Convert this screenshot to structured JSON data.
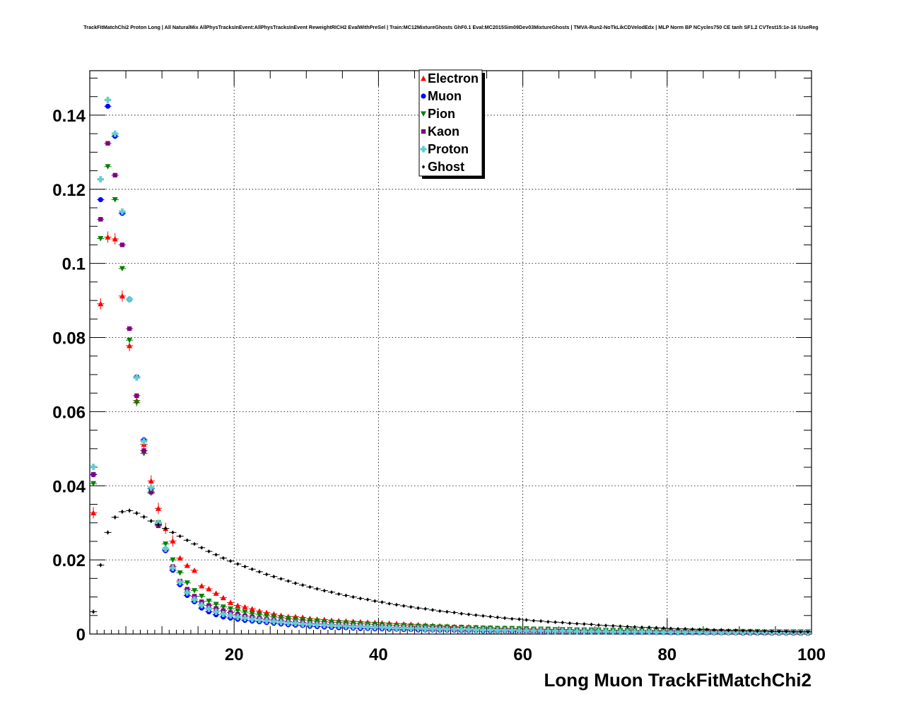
{
  "chart_data": {
    "type": "scatter",
    "title": "TrackFitMatchChi2 Proton Long | All NaturalMix AllPhysTracksInEvent:AllPhysTracksInEvent ReweightRICH2 EvalWithPreSel | Train:MC12MixtureGhosts GhF0.1 Eval:MC2015Sim09Dev03MixtureGhosts | TMVA-Run2-NoTkLikCDVelodEdx | MLP Norm BP NCycles750 CE tanh SF1.2 CVTest15:1e-16 !UseReg",
    "xlabel": "Long Muon TrackFitMatchChi2",
    "ylabel": "",
    "xlim": [
      0,
      100
    ],
    "ylim": [
      0,
      0.152
    ],
    "x_ticks": [
      20,
      40,
      60,
      80,
      100
    ],
    "x_tick_labels": [
      "20",
      "40",
      "60",
      "80",
      "100"
    ],
    "y_ticks": [
      0,
      0.02,
      0.04,
      0.06,
      0.08,
      0.1,
      0.12,
      0.14
    ],
    "y_tick_labels": [
      "0",
      "0.02",
      "0.04",
      "0.06",
      "0.08",
      "0.1",
      "0.12",
      "0.14"
    ],
    "grid": true,
    "legend_position": "top-center",
    "x": [
      0.5,
      1.5,
      2.5,
      3.5,
      4.5,
      5.5,
      6.5,
      7.5,
      8.5,
      9.5,
      10.5,
      11.5,
      12.5,
      13.5,
      14.5,
      15.5,
      16.5,
      17.5,
      18.5,
      19.5,
      20.5,
      21.5,
      22.5,
      23.5,
      24.5,
      25.5,
      26.5,
      27.5,
      28.5,
      29.5,
      30.5,
      31.5,
      32.5,
      33.5,
      34.5,
      35.5,
      36.5,
      37.5,
      38.5,
      39.5,
      40.5,
      41.5,
      42.5,
      43.5,
      44.5,
      45.5,
      46.5,
      47.5,
      48.5,
      49.5,
      50.5,
      51.5,
      52.5,
      53.5,
      54.5,
      55.5,
      56.5,
      57.5,
      58.5,
      59.5,
      60.5,
      61.5,
      62.5,
      63.5,
      64.5,
      65.5,
      66.5,
      67.5,
      68.5,
      69.5,
      70.5,
      71.5,
      72.5,
      73.5,
      74.5,
      75.5,
      76.5,
      77.5,
      78.5,
      79.5,
      80.5,
      81.5,
      82.5,
      83.5,
      84.5,
      85.5,
      86.5,
      87.5,
      88.5,
      89.5,
      90.5,
      91.5,
      92.5,
      93.5,
      94.5,
      95.5,
      96.5,
      97.5,
      98.5,
      99.5
    ],
    "series": [
      {
        "name": "Electron",
        "color": "#ff0000",
        "marker": "triangle-up",
        "values": [
          0.0327,
          0.0891,
          0.1071,
          0.1066,
          0.0912,
          0.0778,
          0.063,
          0.0512,
          0.0413,
          0.0339,
          0.0285,
          0.0251,
          0.0205,
          0.0185,
          0.0172,
          0.013,
          0.0122,
          0.011,
          0.0098,
          0.0085,
          0.0077,
          0.0073,
          0.0068,
          0.0062,
          0.0058,
          0.0054,
          0.005,
          0.0047,
          0.0047,
          0.0045,
          0.0042,
          0.004,
          0.0039,
          0.0037,
          0.0036,
          0.0035,
          0.0034,
          0.0033,
          0.0032,
          0.0031,
          0.003,
          0.0029,
          0.0028,
          0.0027,
          0.0026,
          0.0025,
          0.0024,
          0.0023,
          0.0022,
          0.0021,
          0.002,
          0.0019,
          0.0019,
          0.0018,
          0.0017,
          0.0017,
          0.0016,
          0.0016,
          0.0015,
          0.0015,
          0.0014,
          0.0014,
          0.0013,
          0.0013,
          0.0012,
          0.0012,
          0.0012,
          0.0011,
          0.0011,
          0.0011,
          0.001,
          0.001,
          0.001,
          0.0009,
          0.0009,
          0.0009,
          0.0009,
          0.0008,
          0.0008,
          0.0008,
          0.0008,
          0.0007,
          0.0007,
          0.0007,
          0.0007,
          0.0007,
          0.0006,
          0.0006,
          0.0006,
          0.0006,
          0.0006,
          0.0006,
          0.0005,
          0.0005,
          0.0005,
          0.0005,
          0.0005,
          0.0005,
          0.0005,
          0.0005
        ]
      },
      {
        "name": "Muon",
        "color": "#0000ff",
        "marker": "circle",
        "values": [
          0.043,
          0.1172,
          0.1424,
          0.1343,
          0.1135,
          0.0903,
          0.0694,
          0.0524,
          0.0392,
          0.0297,
          0.0225,
          0.0172,
          0.0133,
          0.0104,
          0.0087,
          0.007,
          0.006,
          0.0052,
          0.0046,
          0.0043,
          0.004,
          0.0037,
          0.0035,
          0.0033,
          0.0031,
          0.0029,
          0.0027,
          0.0025,
          0.0024,
          0.0023,
          0.0021,
          0.002,
          0.0019,
          0.0018,
          0.0017,
          0.0017,
          0.0016,
          0.0015,
          0.0015,
          0.0014,
          0.0014,
          0.0013,
          0.0013,
          0.0012,
          0.0012,
          0.0011,
          0.0011,
          0.0011,
          0.001,
          0.001,
          0.001,
          0.0009,
          0.0009,
          0.0009,
          0.0008,
          0.0008,
          0.0008,
          0.0008,
          0.0007,
          0.0007,
          0.0007,
          0.0007,
          0.0006,
          0.0006,
          0.0006,
          0.0006,
          0.0006,
          0.0005,
          0.0005,
          0.0005,
          0.0005,
          0.0005,
          0.0005,
          0.0004,
          0.0004,
          0.0004,
          0.0004,
          0.0004,
          0.0004,
          0.0004,
          0.0003,
          0.0003,
          0.0003,
          0.0003,
          0.0003,
          0.0003,
          0.0003,
          0.0003,
          0.0003,
          0.0003,
          0.0002,
          0.0002,
          0.0002,
          0.0002,
          0.0002,
          0.0002,
          0.0002,
          0.0002,
          0.0002,
          0.0002
        ]
      },
      {
        "name": "Pion",
        "color": "#008000",
        "marker": "triangle-down",
        "values": [
          0.0406,
          0.1067,
          0.1261,
          0.1172,
          0.0986,
          0.0793,
          0.0624,
          0.0487,
          0.038,
          0.03,
          0.0243,
          0.02,
          0.0165,
          0.0138,
          0.0117,
          0.0102,
          0.0089,
          0.008,
          0.0073,
          0.0068,
          0.0063,
          0.0059,
          0.0055,
          0.0052,
          0.0049,
          0.0046,
          0.0044,
          0.0042,
          0.004,
          0.0038,
          0.0036,
          0.0035,
          0.0033,
          0.0032,
          0.0031,
          0.003,
          0.0029,
          0.0028,
          0.0027,
          0.0026,
          0.0025,
          0.0024,
          0.0023,
          0.0023,
          0.0022,
          0.0021,
          0.0021,
          0.002,
          0.0019,
          0.0019,
          0.0018,
          0.0018,
          0.0017,
          0.0017,
          0.0016,
          0.0016,
          0.0015,
          0.0015,
          0.0015,
          0.0014,
          0.0014,
          0.0013,
          0.0013,
          0.0013,
          0.0012,
          0.0012,
          0.0012,
          0.0011,
          0.0011,
          0.0011,
          0.0011,
          0.001,
          0.001,
          0.001,
          0.001,
          0.0009,
          0.0009,
          0.0009,
          0.0009,
          0.0009,
          0.0008,
          0.0008,
          0.0008,
          0.0008,
          0.0008,
          0.0008,
          0.0007,
          0.0007,
          0.0007,
          0.0007,
          0.0007,
          0.0007,
          0.0007,
          0.0006,
          0.0006,
          0.0006,
          0.0006,
          0.0006,
          0.0006,
          0.0006
        ]
      },
      {
        "name": "Kaon",
        "color": "#800080",
        "marker": "square",
        "values": [
          0.0431,
          0.1119,
          0.1324,
          0.1238,
          0.105,
          0.0824,
          0.0643,
          0.0495,
          0.0383,
          0.0292,
          0.0228,
          0.0182,
          0.0143,
          0.0121,
          0.0102,
          0.0087,
          0.0077,
          0.0069,
          0.0063,
          0.0058,
          0.0053,
          0.0049,
          0.0046,
          0.0043,
          0.004,
          0.0038,
          0.0036,
          0.0034,
          0.0032,
          0.0031,
          0.0029,
          0.0028,
          0.0027,
          0.0026,
          0.0025,
          0.0024,
          0.0023,
          0.0022,
          0.0021,
          0.002,
          0.002,
          0.0019,
          0.0018,
          0.0018,
          0.0017,
          0.0016,
          0.0016,
          0.0015,
          0.0015,
          0.0014,
          0.0014,
          0.0013,
          0.0013,
          0.0013,
          0.0012,
          0.0012,
          0.0011,
          0.0011,
          0.0011,
          0.001,
          0.001,
          0.001,
          0.0009,
          0.0009,
          0.0009,
          0.0009,
          0.0008,
          0.0008,
          0.0008,
          0.0008,
          0.0007,
          0.0007,
          0.0007,
          0.0007,
          0.0007,
          0.0006,
          0.0006,
          0.0006,
          0.0006,
          0.0006,
          0.0006,
          0.0005,
          0.0005,
          0.0005,
          0.0005,
          0.0005,
          0.0005,
          0.0005,
          0.0004,
          0.0004,
          0.0004,
          0.0004,
          0.0004,
          0.0004,
          0.0004,
          0.0004,
          0.0004,
          0.0004,
          0.0003,
          0.0003
        ]
      },
      {
        "name": "Proton",
        "color": "#66cccc",
        "marker": "cross",
        "values": [
          0.0451,
          0.1227,
          0.1441,
          0.135,
          0.114,
          0.0903,
          0.0692,
          0.052,
          0.0395,
          0.03,
          0.023,
          0.0178,
          0.014,
          0.0112,
          0.0093,
          0.0078,
          0.0068,
          0.006,
          0.0054,
          0.005,
          0.0046,
          0.0043,
          0.004,
          0.0038,
          0.0036,
          0.0034,
          0.0032,
          0.003,
          0.0029,
          0.0027,
          0.0026,
          0.0025,
          0.0024,
          0.0023,
          0.0022,
          0.0021,
          0.002,
          0.002,
          0.0019,
          0.0018,
          0.0018,
          0.0017,
          0.0016,
          0.0016,
          0.0015,
          0.0015,
          0.0014,
          0.0014,
          0.0013,
          0.0013,
          0.0013,
          0.0012,
          0.0012,
          0.0011,
          0.0011,
          0.0011,
          0.001,
          0.001,
          0.001,
          0.0009,
          0.0009,
          0.0009,
          0.0009,
          0.0008,
          0.0008,
          0.0008,
          0.0008,
          0.0007,
          0.0007,
          0.0007,
          0.0007,
          0.0007,
          0.0006,
          0.0006,
          0.0006,
          0.0006,
          0.0006,
          0.0006,
          0.0005,
          0.0005,
          0.0005,
          0.0005,
          0.0005,
          0.0005,
          0.0005,
          0.0004,
          0.0004,
          0.0004,
          0.0004,
          0.0004,
          0.0004,
          0.0004,
          0.0004,
          0.0004,
          0.0003,
          0.0003,
          0.0003,
          0.0003,
          0.0003,
          0.0003
        ]
      },
      {
        "name": "Ghost",
        "color": "#000000",
        "marker": "diamond",
        "values": [
          0.006,
          0.0186,
          0.0274,
          0.0315,
          0.033,
          0.0333,
          0.0326,
          0.0316,
          0.0305,
          0.0295,
          0.0285,
          0.0274,
          0.0264,
          0.0253,
          0.0243,
          0.0233,
          0.0223,
          0.0214,
          0.0205,
          0.0197,
          0.0189,
          0.0182,
          0.0175,
          0.0168,
          0.0161,
          0.0155,
          0.0149,
          0.0143,
          0.0137,
          0.0132,
          0.0127,
          0.0122,
          0.0117,
          0.0113,
          0.0108,
          0.0104,
          0.01,
          0.0096,
          0.0093,
          0.0089,
          0.0086,
          0.0082,
          0.0079,
          0.0076,
          0.0073,
          0.007,
          0.0068,
          0.0065,
          0.0062,
          0.006,
          0.0058,
          0.0055,
          0.0053,
          0.0051,
          0.0049,
          0.0047,
          0.0045,
          0.0043,
          0.0041,
          0.004,
          0.0038,
          0.0036,
          0.0035,
          0.0033,
          0.0032,
          0.0031,
          0.0029,
          0.0028,
          0.0027,
          0.0026,
          0.0024,
          0.0023,
          0.0022,
          0.0021,
          0.002,
          0.0019,
          0.0018,
          0.0018,
          0.0017,
          0.0016,
          0.0015,
          0.0014,
          0.0014,
          0.0013,
          0.0012,
          0.0012,
          0.0011,
          0.0011,
          0.001,
          0.001,
          0.0009,
          0.0009,
          0.0008,
          0.0008,
          0.0007,
          0.0007,
          0.0007,
          0.0006,
          0.0006,
          0.0006
        ]
      }
    ]
  }
}
